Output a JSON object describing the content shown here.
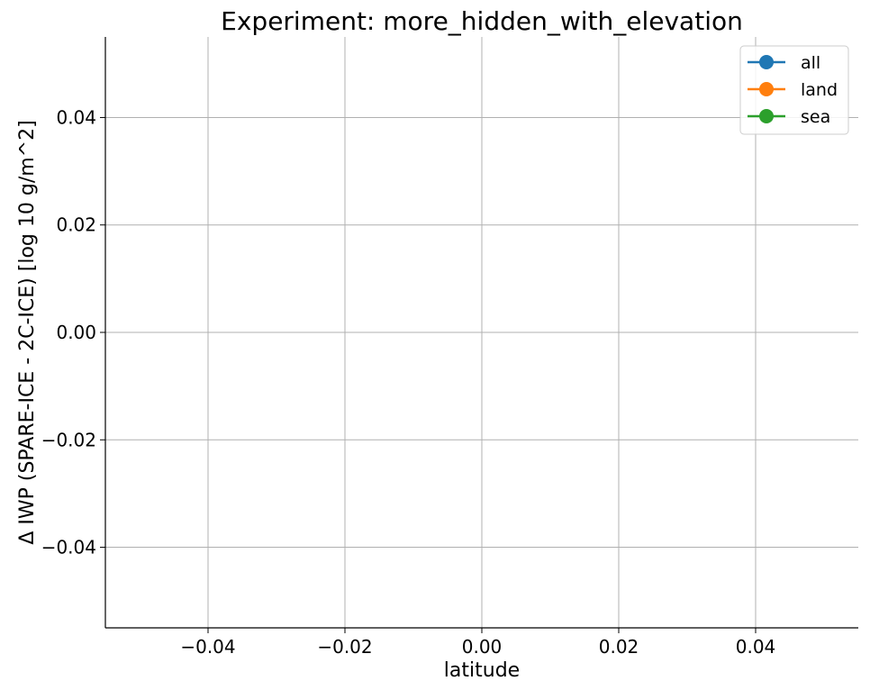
{
  "chart_data": {
    "type": "line",
    "title": "Experiment: more_hidden_with_elevation",
    "xlabel": "latitude",
    "ylabel": "Δ IWP (SPARE-ICE - 2C-ICE) [log 10 g/m^2]",
    "xlim": [
      -0.055,
      0.055
    ],
    "ylim": [
      -0.055,
      0.055
    ],
    "x_ticks": [
      -0.04,
      -0.02,
      0.0,
      0.02,
      0.04
    ],
    "y_ticks": [
      -0.04,
      -0.02,
      0.0,
      0.02,
      0.04
    ],
    "x_tick_labels": [
      "−0.04",
      "−0.02",
      "0.00",
      "0.02",
      "0.04"
    ],
    "y_tick_labels": [
      "−0.04",
      "−0.02",
      "0.00",
      "0.02",
      "0.04"
    ],
    "grid": true,
    "legend_position": "top-right",
    "series": [
      {
        "name": "all",
        "color": "#1f77b4",
        "x": [],
        "y": []
      },
      {
        "name": "land",
        "color": "#ff7f0e",
        "x": [],
        "y": []
      },
      {
        "name": "sea",
        "color": "#2ca02c",
        "x": [],
        "y": []
      }
    ]
  }
}
